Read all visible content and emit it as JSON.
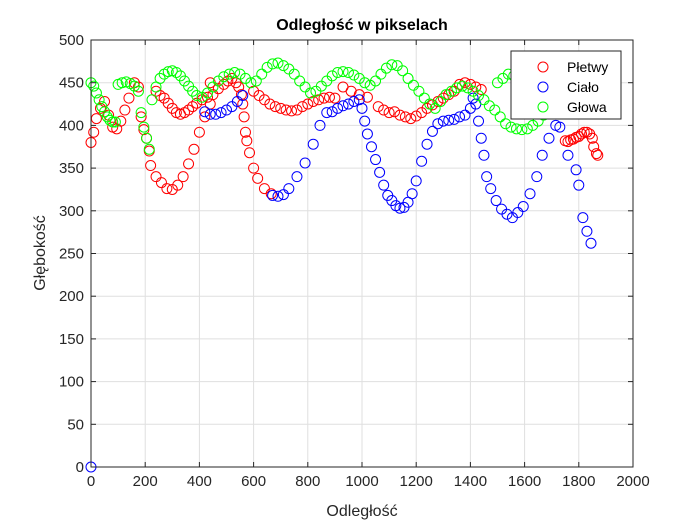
{
  "chart_data": {
    "type": "scatter",
    "title": "Odległość w pikselach",
    "xlabel": "Odległość",
    "ylabel": "Głębokość",
    "xlim": [
      0,
      2000
    ],
    "ylim": [
      0,
      500
    ],
    "x_ticks": [
      0,
      200,
      400,
      600,
      800,
      1000,
      1200,
      1400,
      1600,
      1800,
      2000
    ],
    "y_ticks": [
      0,
      50,
      100,
      150,
      200,
      250,
      300,
      350,
      400,
      450,
      500
    ],
    "grid": true,
    "legend_position": "top-right",
    "marker": "open-circle",
    "series": [
      {
        "name": "Płetwy",
        "color": "#ff0000",
        "points": [
          [
            0,
            380
          ],
          [
            10,
            392
          ],
          [
            20,
            408
          ],
          [
            35,
            420
          ],
          [
            50,
            428
          ],
          [
            65,
            412
          ],
          [
            80,
            398
          ],
          [
            95,
            396
          ],
          [
            110,
            405
          ],
          [
            125,
            418
          ],
          [
            140,
            432
          ],
          [
            160,
            450
          ],
          [
            175,
            445
          ],
          [
            185,
            410
          ],
          [
            195,
            395
          ],
          [
            205,
            385
          ],
          [
            215,
            370
          ],
          [
            220,
            353
          ],
          [
            240,
            340
          ],
          [
            260,
            333
          ],
          [
            280,
            326
          ],
          [
            300,
            325
          ],
          [
            320,
            330
          ],
          [
            340,
            340
          ],
          [
            360,
            355
          ],
          [
            380,
            372
          ],
          [
            400,
            392
          ],
          [
            420,
            410
          ],
          [
            440,
            425
          ],
          [
            440,
            450
          ],
          [
            240,
            440
          ],
          [
            255,
            435
          ],
          [
            270,
            432
          ],
          [
            285,
            426
          ],
          [
            300,
            420
          ],
          [
            315,
            415
          ],
          [
            330,
            413
          ],
          [
            345,
            415
          ],
          [
            360,
            418
          ],
          [
            375,
            422
          ],
          [
            390,
            426
          ],
          [
            410,
            430
          ],
          [
            430,
            433
          ],
          [
            450,
            436
          ],
          [
            470,
            443
          ],
          [
            490,
            448
          ],
          [
            505,
            452
          ],
          [
            520,
            455
          ],
          [
            535,
            450
          ],
          [
            545,
            445
          ],
          [
            555,
            436
          ],
          [
            560,
            425
          ],
          [
            565,
            410
          ],
          [
            570,
            392
          ],
          [
            575,
            382
          ],
          [
            585,
            368
          ],
          [
            600,
            350
          ],
          [
            615,
            338
          ],
          [
            640,
            326
          ],
          [
            665,
            320
          ],
          [
            600,
            440
          ],
          [
            620,
            435
          ],
          [
            640,
            430
          ],
          [
            660,
            425
          ],
          [
            680,
            422
          ],
          [
            700,
            420
          ],
          [
            720,
            418
          ],
          [
            740,
            417
          ],
          [
            760,
            418
          ],
          [
            780,
            422
          ],
          [
            800,
            425
          ],
          [
            820,
            428
          ],
          [
            840,
            430
          ],
          [
            860,
            432
          ],
          [
            880,
            433
          ],
          [
            900,
            432
          ],
          [
            930,
            445
          ],
          [
            960,
            440
          ],
          [
            990,
            436
          ],
          [
            1020,
            433
          ],
          [
            1060,
            422
          ],
          [
            1080,
            418
          ],
          [
            1100,
            415
          ],
          [
            1120,
            416
          ],
          [
            1140,
            412
          ],
          [
            1160,
            410
          ],
          [
            1180,
            408
          ],
          [
            1200,
            411
          ],
          [
            1220,
            415
          ],
          [
            1240,
            420
          ],
          [
            1260,
            424
          ],
          [
            1280,
            428
          ],
          [
            1300,
            432
          ],
          [
            1320,
            436
          ],
          [
            1340,
            440
          ],
          [
            1360,
            448
          ],
          [
            1380,
            450
          ],
          [
            1400,
            448
          ],
          [
            1420,
            445
          ],
          [
            1440,
            442
          ],
          [
            1750,
            382
          ],
          [
            1760,
            381
          ],
          [
            1770,
            383
          ],
          [
            1780,
            384
          ],
          [
            1790,
            386
          ],
          [
            1800,
            387
          ],
          [
            1810,
            390
          ],
          [
            1820,
            392
          ],
          [
            1830,
            392
          ],
          [
            1840,
            390
          ],
          [
            1850,
            385
          ],
          [
            1855,
            375
          ],
          [
            1865,
            367
          ],
          [
            1870,
            365
          ]
        ]
      },
      {
        "name": "Ciało",
        "color": "#0000ff",
        "points": [
          [
            0,
            0
          ],
          [
            420,
            416
          ],
          [
            440,
            413
          ],
          [
            460,
            413
          ],
          [
            480,
            415
          ],
          [
            500,
            418
          ],
          [
            520,
            422
          ],
          [
            540,
            428
          ],
          [
            560,
            435
          ],
          [
            670,
            318
          ],
          [
            690,
            317
          ],
          [
            710,
            319
          ],
          [
            730,
            326
          ],
          [
            760,
            340
          ],
          [
            790,
            356
          ],
          [
            820,
            378
          ],
          [
            845,
            400
          ],
          [
            870,
            415
          ],
          [
            890,
            416
          ],
          [
            910,
            420
          ],
          [
            930,
            423
          ],
          [
            950,
            425
          ],
          [
            970,
            428
          ],
          [
            990,
            430
          ],
          [
            1000,
            420
          ],
          [
            1010,
            405
          ],
          [
            1020,
            390
          ],
          [
            1035,
            375
          ],
          [
            1050,
            360
          ],
          [
            1065,
            345
          ],
          [
            1080,
            330
          ],
          [
            1095,
            318
          ],
          [
            1110,
            312
          ],
          [
            1125,
            306
          ],
          [
            1140,
            303
          ],
          [
            1155,
            304
          ],
          [
            1170,
            310
          ],
          [
            1185,
            320
          ],
          [
            1200,
            335
          ],
          [
            1220,
            358
          ],
          [
            1240,
            378
          ],
          [
            1260,
            393
          ],
          [
            1280,
            402
          ],
          [
            1300,
            405
          ],
          [
            1320,
            406
          ],
          [
            1340,
            407
          ],
          [
            1360,
            410
          ],
          [
            1380,
            412
          ],
          [
            1400,
            420
          ],
          [
            1410,
            432
          ],
          [
            1420,
            425
          ],
          [
            1430,
            405
          ],
          [
            1440,
            385
          ],
          [
            1450,
            365
          ],
          [
            1460,
            340
          ],
          [
            1475,
            326
          ],
          [
            1495,
            312
          ],
          [
            1515,
            302
          ],
          [
            1535,
            296
          ],
          [
            1555,
            292
          ],
          [
            1575,
            298
          ],
          [
            1595,
            305
          ],
          [
            1620,
            320
          ],
          [
            1645,
            340
          ],
          [
            1665,
            365
          ],
          [
            1690,
            385
          ],
          [
            1715,
            400
          ],
          [
            1730,
            398
          ],
          [
            1760,
            365
          ],
          [
            1790,
            348
          ],
          [
            1800,
            330
          ],
          [
            1815,
            292
          ],
          [
            1830,
            276
          ],
          [
            1845,
            262
          ]
        ]
      },
      {
        "name": "Głowa",
        "color": "#00ff00",
        "points": [
          [
            0,
            450
          ],
          [
            10,
            446
          ],
          [
            20,
            438
          ],
          [
            30,
            430
          ],
          [
            40,
            422
          ],
          [
            50,
            416
          ],
          [
            60,
            410
          ],
          [
            70,
            406
          ],
          [
            80,
            404
          ],
          [
            90,
            404
          ],
          [
            100,
            448
          ],
          [
            115,
            450
          ],
          [
            130,
            451
          ],
          [
            145,
            449
          ],
          [
            160,
            446
          ],
          [
            175,
            440
          ],
          [
            185,
            415
          ],
          [
            195,
            398
          ],
          [
            205,
            385
          ],
          [
            215,
            372
          ],
          [
            225,
            430
          ],
          [
            240,
            445
          ],
          [
            255,
            455
          ],
          [
            270,
            460
          ],
          [
            285,
            463
          ],
          [
            300,
            464
          ],
          [
            315,
            462
          ],
          [
            330,
            458
          ],
          [
            345,
            452
          ],
          [
            360,
            446
          ],
          [
            375,
            440
          ],
          [
            390,
            435
          ],
          [
            410,
            433
          ],
          [
            430,
            438
          ],
          [
            450,
            445
          ],
          [
            470,
            452
          ],
          [
            490,
            457
          ],
          [
            510,
            460
          ],
          [
            530,
            462
          ],
          [
            550,
            460
          ],
          [
            570,
            455
          ],
          [
            590,
            450
          ],
          [
            610,
            452
          ],
          [
            630,
            460
          ],
          [
            650,
            468
          ],
          [
            670,
            472
          ],
          [
            690,
            473
          ],
          [
            710,
            470
          ],
          [
            730,
            466
          ],
          [
            750,
            460
          ],
          [
            770,
            452
          ],
          [
            790,
            445
          ],
          [
            810,
            438
          ],
          [
            830,
            440
          ],
          [
            850,
            446
          ],
          [
            870,
            452
          ],
          [
            890,
            458
          ],
          [
            910,
            462
          ],
          [
            930,
            463
          ],
          [
            950,
            462
          ],
          [
            970,
            459
          ],
          [
            990,
            455
          ],
          [
            1010,
            450
          ],
          [
            1030,
            447
          ],
          [
            1050,
            452
          ],
          [
            1070,
            460
          ],
          [
            1090,
            467
          ],
          [
            1110,
            471
          ],
          [
            1130,
            470
          ],
          [
            1150,
            464
          ],
          [
            1170,
            455
          ],
          [
            1190,
            447
          ],
          [
            1210,
            440
          ],
          [
            1230,
            432
          ],
          [
            1250,
            425
          ],
          [
            1270,
            420
          ],
          [
            1290,
            428
          ],
          [
            1310,
            436
          ],
          [
            1330,
            440
          ],
          [
            1350,
            444
          ],
          [
            1370,
            446
          ],
          [
            1390,
            444
          ],
          [
            1410,
            440
          ],
          [
            1430,
            435
          ],
          [
            1450,
            430
          ],
          [
            1470,
            423
          ],
          [
            1490,
            418
          ],
          [
            1510,
            410
          ],
          [
            1530,
            402
          ],
          [
            1550,
            398
          ],
          [
            1570,
            396
          ],
          [
            1590,
            395
          ],
          [
            1610,
            396
          ],
          [
            1630,
            400
          ],
          [
            1650,
            405
          ],
          [
            1670,
            412
          ],
          [
            1500,
            450
          ],
          [
            1520,
            455
          ],
          [
            1540,
            460
          ],
          [
            1560,
            458
          ]
        ]
      }
    ]
  }
}
